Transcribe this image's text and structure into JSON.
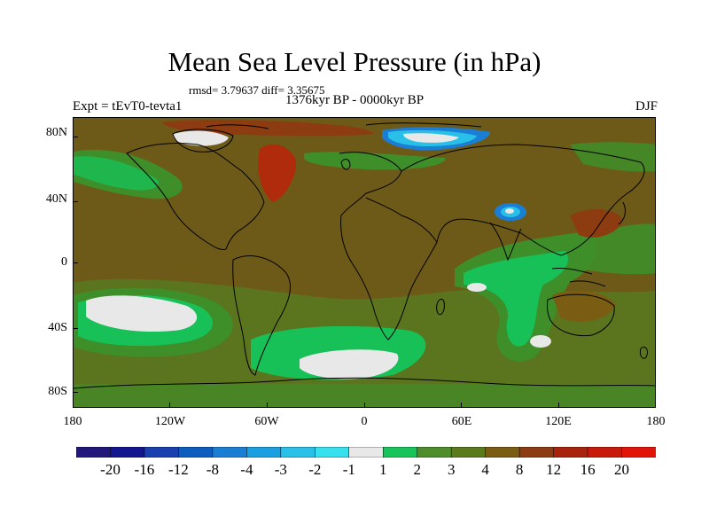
{
  "title": "Mean Sea Level Pressure (in hPa)",
  "stats": "rmsd= 3.79637 diff= 3.35675",
  "period": "1376kyr BP - 0000kyr BP",
  "experiment": "Expt = tEvT0-tevta1",
  "season": "DJF",
  "axes": {
    "lat_labels": [
      "80N",
      "40N",
      "0",
      "40S",
      "80S"
    ],
    "lon_labels": [
      "180",
      "120W",
      "60W",
      "0",
      "60E",
      "120E",
      "180"
    ]
  },
  "colorbar": {
    "labels": [
      "-20",
      "-16",
      "-12",
      "-8",
      "-4",
      "-3",
      "-2",
      "-1",
      "1",
      "2",
      "3",
      "4",
      "8",
      "12",
      "16",
      "20"
    ],
    "colors": [
      "#22177a",
      "#12178f",
      "#1a3fae",
      "#0d5cc0",
      "#1a7fd4",
      "#1aa0e0",
      "#28c0e8",
      "#36e0ee",
      "#e8e8e8",
      "#16c45a",
      "#4e8c2c",
      "#5a7a1c",
      "#7a5c12",
      "#8c3c10",
      "#a8220c",
      "#c81a0a",
      "#e21408"
    ]
  },
  "palette": {
    "base_brown": "#6e5a18",
    "olive": "#587a20",
    "green_mid": "#3e8e2a",
    "green_bright": "#18c058",
    "white": "#e8e8e8",
    "blue_deep": "#0d5cc0",
    "blue_light": "#28c0e8",
    "red": "#b02a0c"
  }
}
